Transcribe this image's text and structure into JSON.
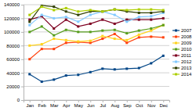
{
  "chart_data": {
    "type": "line",
    "categories": [
      "Jan",
      "Feb",
      "Mar",
      "Apr",
      "May",
      "Jun",
      "Jul",
      "Aug",
      "Sep",
      "Oct",
      "Nov",
      "Dec"
    ],
    "series": [
      {
        "name": "2007",
        "color": "#004586",
        "values": [
          38000,
          27000,
          30000,
          36000,
          37000,
          41000,
          46000,
          45000,
          46000,
          47000,
          54000,
          65000
        ]
      },
      {
        "name": "2008",
        "color": "#ff420e",
        "values": [
          60000,
          75000,
          75000,
          84000,
          85000,
          84000,
          90000,
          97000,
          84000,
          92000,
          93000,
          92000
        ]
      },
      {
        "name": "2009",
        "color": "#ffd320",
        "values": [
          80000,
          82000,
          90000,
          88000,
          86000,
          87000,
          94000,
          90000,
          88000,
          96000,
          102000,
          110000
        ]
      },
      {
        "name": "2010",
        "color": "#579d1c",
        "values": [
          100000,
          108000,
          95000,
          103000,
          100000,
          100000,
          102000,
          103000,
          98000,
          102000,
          105000,
          110000
        ]
      },
      {
        "name": "2011",
        "color": "#7e0021",
        "values": [
          118000,
          123000,
          105000,
          118000,
          108000,
          112000,
          118000,
          112000,
          118000,
          118000,
          118000,
          120000
        ]
      },
      {
        "name": "2012",
        "color": "#83caff",
        "values": [
          110000,
          125000,
          120000,
          122000,
          115000,
          125000,
          130000,
          125000,
          115000,
          122000,
          123000,
          128000
        ]
      },
      {
        "name": "2013",
        "color": "#314004",
        "values": [
          115000,
          139000,
          137000,
          130000,
          125000,
          130000,
          130000,
          133000,
          130000,
          128000,
          128000,
          130000
        ]
      },
      {
        "name": "2014",
        "color": "#aecf00",
        "values": [
          125000,
          137000,
          132000,
          135000,
          130000,
          132000,
          130000,
          133000,
          132000,
          133000,
          133000,
          132000
        ]
      }
    ],
    "ylim": [
      0,
      140000
    ],
    "yticks": [
      0,
      20000,
      40000,
      60000,
      80000,
      100000,
      120000,
      140000
    ],
    "grid": true,
    "legend": "right",
    "marker": "square"
  }
}
